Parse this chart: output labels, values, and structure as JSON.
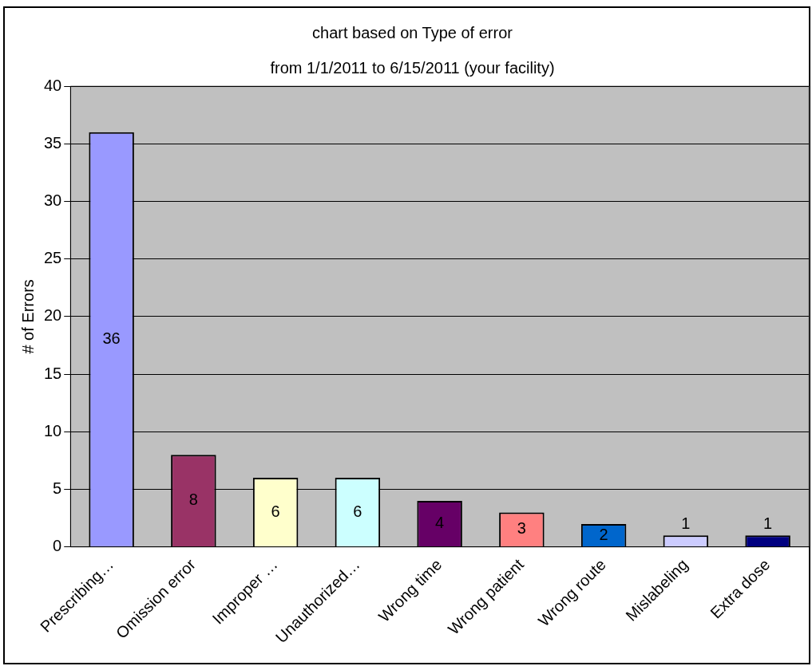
{
  "chart_data": {
    "type": "bar",
    "title": "chart based on Type of error",
    "subtitle": "from 1/1/2011 to 6/15/2011 (your facility)",
    "ylabel": "# of Errors",
    "categories": [
      "Prescribing…",
      "Omission error",
      "Improper …",
      "Unauthorized…",
      "Wrong time",
      "Wrong patient",
      "Wrong route",
      "Mislabeling",
      "Extra dose"
    ],
    "values": [
      36,
      8,
      6,
      6,
      4,
      3,
      2,
      1,
      1
    ],
    "colors": [
      "#9999ff",
      "#993366",
      "#ffffcc",
      "#ccffff",
      "#660066",
      "#ff8080",
      "#0066cc",
      "#ccccff",
      "#000080"
    ],
    "ylim": [
      0,
      40
    ],
    "yticks": [
      0,
      5,
      10,
      15,
      20,
      25,
      30,
      35,
      40
    ],
    "grid": "y",
    "data_labels": true,
    "legend": false
  }
}
